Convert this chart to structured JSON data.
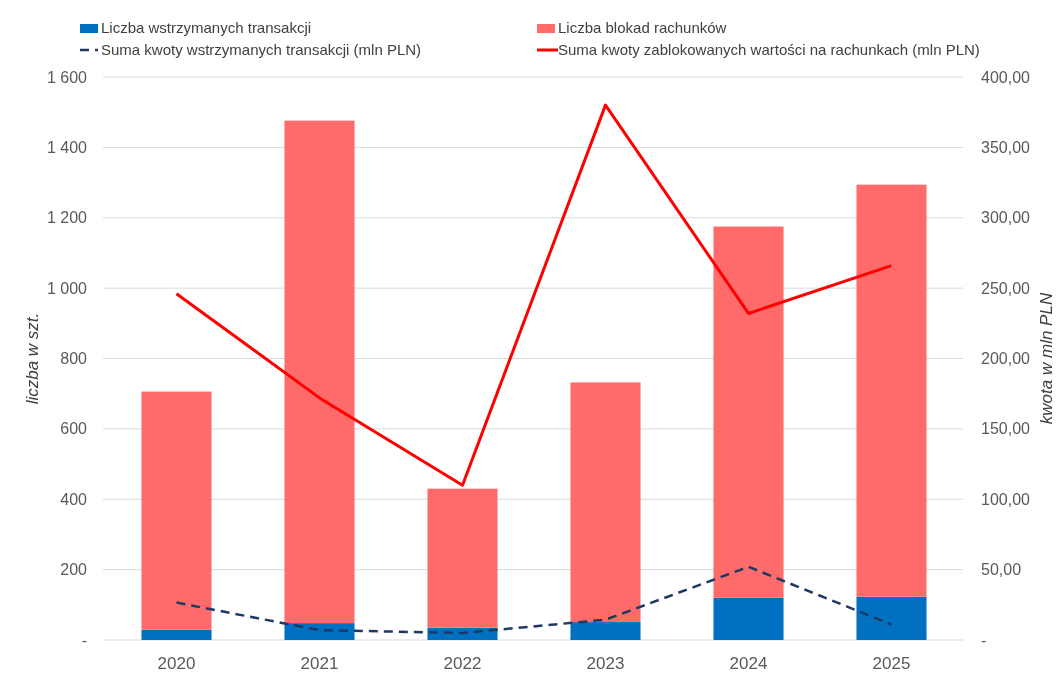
{
  "chart_data": {
    "type": "bar",
    "stacked": true,
    "categories": [
      "2020",
      "2021",
      "2022",
      "2023",
      "2024",
      "2025"
    ],
    "series": [
      {
        "name": "Liczba wstrzymanych transakcji",
        "color": "#0070c0",
        "values": [
          29,
          48,
          35,
          51,
          120,
          123
        ]
      },
      {
        "name": "Liczba blokad rachunków",
        "color": "#ff6b6b",
        "values": [
          677,
          1428,
          395,
          681,
          1055,
          1171
        ]
      },
      {
        "name": "Suma kwoty wstrzymanych transakcji (mln PLN)",
        "type": "line",
        "axis": "y2",
        "line_style": "dashed",
        "color": "#1f3864",
        "values": [
          26.6,
          7,
          5,
          14.4,
          52,
          11
        ]
      },
      {
        "name": "Suma kwoty zablokowanych wartości na rachunkach (mln PLN)",
        "type": "line",
        "axis": "y2",
        "line_style": "solid",
        "color": "#ff0000",
        "values": [
          246,
          172,
          110,
          380,
          232,
          266
        ]
      }
    ],
    "ylabel": "liczba w szt.",
    "y2label": "kwota w mln PLN",
    "ylim": [
      0,
      1600
    ],
    "yticks": [
      {
        "value": 0,
        "label": "-"
      },
      200,
      400,
      600,
      800,
      {
        "value": 1000,
        "label": "1 000"
      },
      {
        "value": 1200,
        "label": "1 200"
      },
      {
        "value": 1400,
        "label": "1 400"
      },
      {
        "value": 1600,
        "label": "1 600"
      }
    ],
    "y2lim": [
      0,
      400
    ],
    "y2ticks": [
      {
        "value": 0,
        "label": "-"
      },
      {
        "value": 50,
        "label": "50,00"
      },
      {
        "value": 100,
        "label": "100,00"
      },
      {
        "value": 150,
        "label": "150,00"
      },
      {
        "value": 200,
        "label": "200,00"
      },
      {
        "value": 250,
        "label": "250,00"
      },
      {
        "value": 300,
        "label": "300,00"
      },
      {
        "value": 350,
        "label": "350,00"
      },
      {
        "value": 400,
        "label": "400,00"
      }
    ],
    "grid": "y",
    "legend": "top"
  }
}
